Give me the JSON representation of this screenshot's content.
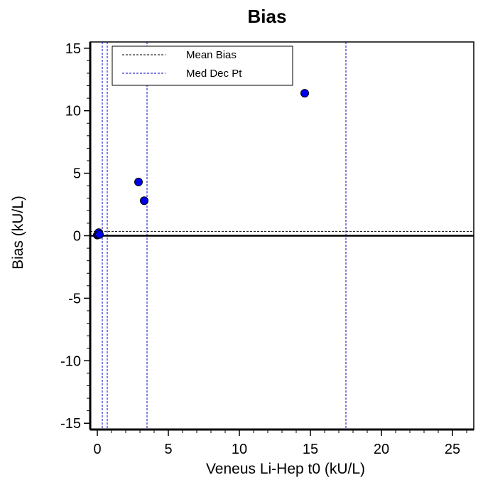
{
  "chart_data": {
    "type": "scatter",
    "title": "Bias",
    "xlabel": "Veneus Li-Hep t0 (kU/L)",
    "ylabel": "Bias (kU/L)",
    "xlim": [
      -0.5,
      26.5
    ],
    "ylim": [
      -15.5,
      15.5
    ],
    "xticks": [
      0,
      5,
      10,
      15,
      20,
      25
    ],
    "yticks": [
      -15,
      -10,
      -5,
      0,
      5,
      10,
      15
    ],
    "grid": false,
    "legend_position": "top-left",
    "legend": [
      {
        "label": "Mean Bias",
        "style": "dashed",
        "color": "#000000"
      },
      {
        "label": "Med Dec Pt",
        "style": "dashed",
        "color": "#0000cc"
      }
    ],
    "mean_bias": 0.35,
    "med_dec_pts": [
      0.35,
      0.7,
      3.5,
      17.5
    ],
    "zero_line": 0,
    "points": [
      {
        "x": 0.0,
        "y": 0.05
      },
      {
        "x": 0.05,
        "y": 0.1
      },
      {
        "x": 0.1,
        "y": 0.25
      },
      {
        "x": 0.15,
        "y": 0.1
      },
      {
        "x": 2.9,
        "y": 4.3
      },
      {
        "x": 3.3,
        "y": 2.8
      },
      {
        "x": 14.6,
        "y": 11.4
      }
    ],
    "colors": {
      "point_fill": "#0000ee",
      "point_stroke": "#000000",
      "med_dec_line": "#0000cc"
    }
  }
}
